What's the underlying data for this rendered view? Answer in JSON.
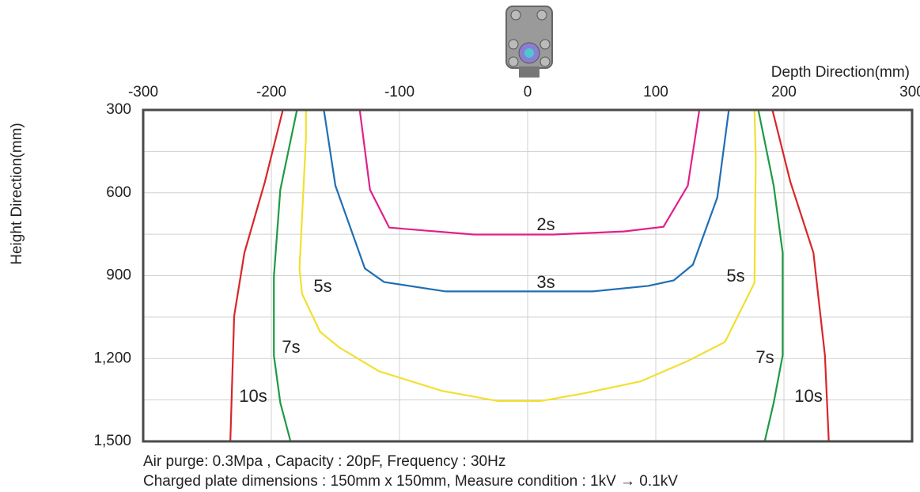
{
  "chart_data": {
    "type": "line",
    "x_label": "Depth Direction(mm)",
    "y_label": "Height Direction(mm)",
    "notes": [
      "Air purge: 0.3Mpa , Capacity : 20pF,  Frequency : 30Hz",
      "Charged plate dimensions : 150mm x 150mm, Measure condition : 1kV → 0.1kV"
    ],
    "xlim": [
      -300,
      300
    ],
    "xticks": [
      -300,
      -200,
      -100,
      0,
      100,
      200,
      300
    ],
    "ylim": [
      300,
      1500
    ],
    "y_inverted": true,
    "yticks": [
      300,
      600,
      900,
      {
        "value": 1200,
        "label": "1,200"
      },
      {
        "value": 1500,
        "label": "1,500"
      }
    ],
    "minor_yticks": [
      450,
      750,
      1050,
      1350
    ],
    "grid": true,
    "series": [
      {
        "name": "2s",
        "color": "#e0208c",
        "x": [
          -131,
          -123,
          -108,
          -42,
          20,
          75,
          106,
          125,
          134
        ],
        "values": [
          300,
          589,
          726,
          751,
          751,
          740,
          723,
          574,
          300
        ]
      },
      {
        "name": "3s",
        "color": "#1f6fb4",
        "x": [
          -159,
          -150,
          -127,
          -112,
          -64,
          51,
          94,
          114,
          129,
          148,
          157
        ],
        "values": [
          300,
          574,
          874,
          923,
          957,
          957,
          937,
          917,
          860,
          617,
          300
        ]
      },
      {
        "name": "5s",
        "color": "#f2e030",
        "x": [
          -173,
          -173,
          -178,
          -176,
          -162,
          -147,
          -116,
          -67,
          -23,
          10,
          44,
          88,
          125,
          154,
          177,
          178,
          177
        ],
        "values": [
          300,
          403,
          874,
          966,
          1103,
          1160,
          1246,
          1317,
          1354,
          1354,
          1326,
          1283,
          1209,
          1140,
          926,
          474,
          300
        ]
      },
      {
        "name": "7s",
        "color": "#1e9a46",
        "x": [
          -180,
          -193,
          -198,
          -198,
          -193,
          -185,
          null,
          180,
          192,
          199,
          199,
          192,
          185
        ],
        "values": [
          300,
          589,
          903,
          1189,
          1360,
          1500,
          null,
          300,
          574,
          817,
          1189,
          1360,
          1500
        ]
      },
      {
        "name": "10s",
        "color": "#d8262a",
        "x": [
          -191,
          -205,
          -221,
          -229,
          -232,
          null,
          191,
          205,
          223,
          232,
          235
        ],
        "values": [
          300,
          560,
          817,
          1046,
          1500,
          null,
          300,
          560,
          817,
          1189,
          1500
        ]
      }
    ]
  }
}
